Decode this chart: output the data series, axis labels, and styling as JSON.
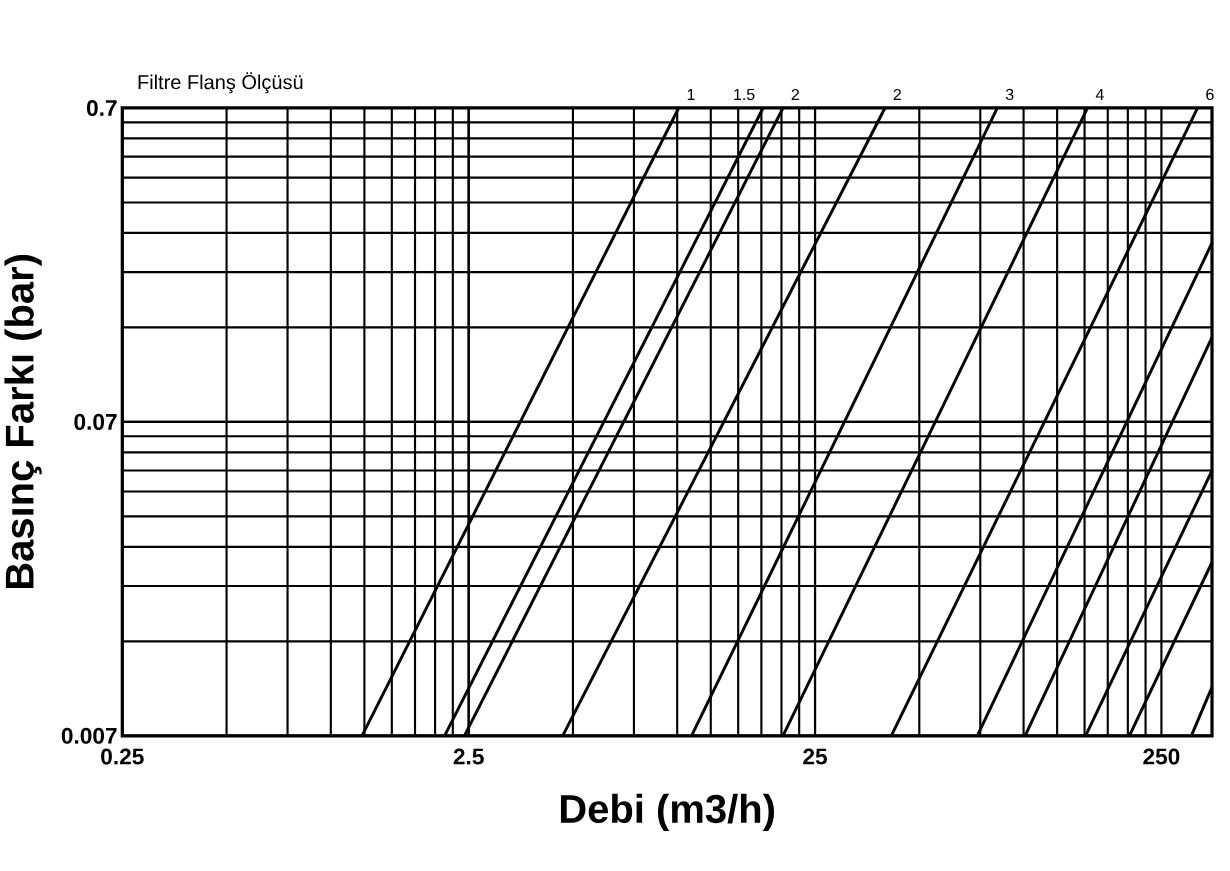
{
  "chart_data": {
    "type": "line",
    "title": "Filtre Flanş Ölçüsü",
    "xlabel": "Debi (m3/h)",
    "ylabel": "Basınç Farkı (bar)",
    "log": "xy",
    "grid": true,
    "xlim": [
      0.25,
      350
    ],
    "ylim": [
      0.007,
      0.7
    ],
    "xticks": [
      0.25,
      2.5,
      25,
      250
    ],
    "yticks": [
      0.007,
      0.07,
      0.7
    ],
    "series": [
      {
        "name": "1",
        "color": "#000000",
        "x": [
          1.23,
          10.1
        ],
        "values": [
          0.007,
          0.7
        ]
      },
      {
        "name": "1.5",
        "color": "#000000",
        "x": [
          2.13,
          17.7
        ],
        "values": [
          0.007,
          0.7
        ]
      },
      {
        "name": "2",
        "color": "#000000",
        "x": [
          2.43,
          20.2
        ],
        "values": [
          0.007,
          0.7
        ]
      },
      {
        "name": "2",
        "color": "#000000",
        "x": [
          4.67,
          39.8
        ],
        "values": [
          0.007,
          0.7
        ]
      },
      {
        "name": "3",
        "color": "#000000",
        "x": [
          11,
          84
        ],
        "values": [
          0.007,
          0.7
        ]
      },
      {
        "name": "4",
        "color": "#000000",
        "x": [
          20.2,
          153
        ],
        "values": [
          0.007,
          0.7
        ]
      },
      {
        "name": "6",
        "color": "#000000",
        "x": [
          41.5,
          318
        ],
        "values": [
          0.007,
          0.7
        ]
      },
      {
        "color": "#000000",
        "x": [
          73.5,
          350
        ],
        "values": [
          0.007,
          0.26
        ]
      },
      {
        "color": "#000000",
        "x": [
          101,
          350
        ],
        "values": [
          0.007,
          0.13
        ]
      },
      {
        "color": "#000000",
        "x": [
          151,
          350
        ],
        "values": [
          0.007,
          0.049
        ]
      },
      {
        "color": "#000000",
        "x": [
          202,
          350
        ],
        "values": [
          0.007,
          0.025
        ]
      },
      {
        "color": "#000000",
        "x": [
          305,
          350
        ],
        "values": [
          0.007,
          0.01
        ]
      }
    ]
  }
}
